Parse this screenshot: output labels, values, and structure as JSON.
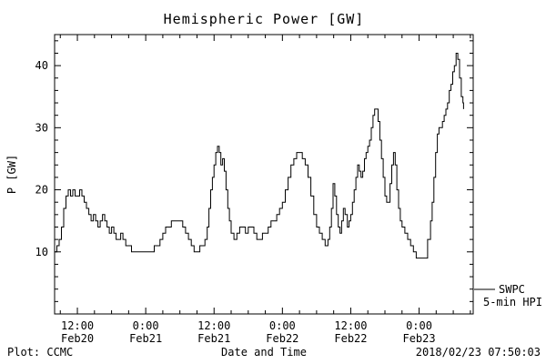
{
  "title": "Hemispheric Power [GW]",
  "footer": {
    "plot_credit": "Plot: CCMC",
    "xaxis_title": "Date and Time",
    "timestamp": "2018/02/23 07:50:03"
  },
  "legend": {
    "line1": "SWPC",
    "line2": "5-min HPI"
  },
  "colors": {
    "background": "#ffffff",
    "foreground": "#000000",
    "line": "#000000"
  },
  "axes": {
    "ylabel": "P [GW]",
    "y_ticks": [
      10,
      20,
      30,
      40
    ],
    "y_range": [
      0,
      45
    ],
    "y_minor_step": 2,
    "x_range_hours": [
      0,
      73.5
    ],
    "x_minor_step": 3,
    "x_ticks": [
      {
        "hours": 4,
        "time": "12:00",
        "date": "Feb20"
      },
      {
        "hours": 16,
        "time": "0:00",
        "date": "Feb21"
      },
      {
        "hours": 28,
        "time": "12:00",
        "date": "Feb21"
      },
      {
        "hours": 40,
        "time": "0:00",
        "date": "Feb22"
      },
      {
        "hours": 52,
        "time": "12:00",
        "date": "Feb22"
      },
      {
        "hours": 64,
        "time": "0:00",
        "date": "Feb23"
      }
    ]
  },
  "chart_data": {
    "type": "line",
    "title": "Hemispheric Power [GW]",
    "xlabel": "Date and Time",
    "ylabel": "P [GW]",
    "x_unit": "hours since 2018-02-20 08:00",
    "xlim": [
      0,
      73.5
    ],
    "ylim": [
      0,
      45
    ],
    "grid": false,
    "legend_position": "right-outside-bottom",
    "line_style": "step",
    "series": [
      {
        "name": "SWPC 5-min HPI",
        "points": [
          [
            0,
            10
          ],
          [
            0.4,
            11
          ],
          [
            0.8,
            12
          ],
          [
            1.2,
            14
          ],
          [
            1.6,
            17
          ],
          [
            2,
            19
          ],
          [
            2.4,
            20
          ],
          [
            2.8,
            19
          ],
          [
            3.2,
            20
          ],
          [
            3.6,
            19
          ],
          [
            4,
            19
          ],
          [
            4.4,
            20
          ],
          [
            4.8,
            19
          ],
          [
            5.2,
            18
          ],
          [
            5.6,
            17
          ],
          [
            6,
            16
          ],
          [
            6.4,
            15
          ],
          [
            6.8,
            16
          ],
          [
            7.2,
            15
          ],
          [
            7.6,
            14
          ],
          [
            8,
            15
          ],
          [
            8.4,
            16
          ],
          [
            8.8,
            15
          ],
          [
            9.2,
            14
          ],
          [
            9.6,
            13
          ],
          [
            10,
            14
          ],
          [
            10.4,
            13
          ],
          [
            10.8,
            12
          ],
          [
            11.2,
            12
          ],
          [
            11.6,
            13
          ],
          [
            12,
            12
          ],
          [
            12.5,
            11
          ],
          [
            13,
            11
          ],
          [
            13.5,
            10
          ],
          [
            14,
            10
          ],
          [
            15,
            10
          ],
          [
            16,
            10
          ],
          [
            17,
            10
          ],
          [
            17.5,
            11
          ],
          [
            18,
            11
          ],
          [
            18.5,
            12
          ],
          [
            19,
            13
          ],
          [
            19.5,
            14
          ],
          [
            20,
            14
          ],
          [
            20.5,
            15
          ],
          [
            21,
            15
          ],
          [
            21.5,
            15
          ],
          [
            22,
            15
          ],
          [
            22.5,
            14
          ],
          [
            23,
            13
          ],
          [
            23.5,
            12
          ],
          [
            24,
            11
          ],
          [
            24.5,
            10
          ],
          [
            25,
            10
          ],
          [
            25.5,
            11
          ],
          [
            26,
            11
          ],
          [
            26.4,
            12
          ],
          [
            26.8,
            14
          ],
          [
            27.1,
            17
          ],
          [
            27.4,
            20
          ],
          [
            27.7,
            22
          ],
          [
            28,
            24
          ],
          [
            28.3,
            26
          ],
          [
            28.6,
            27
          ],
          [
            28.9,
            26
          ],
          [
            29.2,
            24
          ],
          [
            29.5,
            25
          ],
          [
            29.8,
            23
          ],
          [
            30.1,
            20
          ],
          [
            30.4,
            17
          ],
          [
            30.7,
            15
          ],
          [
            31,
            13
          ],
          [
            31.5,
            12
          ],
          [
            32,
            13
          ],
          [
            32.5,
            14
          ],
          [
            33,
            14
          ],
          [
            33.5,
            13
          ],
          [
            34,
            14
          ],
          [
            34.5,
            14
          ],
          [
            35,
            13
          ],
          [
            35.5,
            12
          ],
          [
            36,
            12
          ],
          [
            36.5,
            13
          ],
          [
            37,
            13
          ],
          [
            37.5,
            14
          ],
          [
            38,
            15
          ],
          [
            38.5,
            15
          ],
          [
            39,
            16
          ],
          [
            39.5,
            17
          ],
          [
            40,
            18
          ],
          [
            40.5,
            20
          ],
          [
            41,
            22
          ],
          [
            41.5,
            24
          ],
          [
            42,
            25
          ],
          [
            42.5,
            26
          ],
          [
            43,
            26
          ],
          [
            43.5,
            25
          ],
          [
            44,
            24
          ],
          [
            44.5,
            22
          ],
          [
            45,
            19
          ],
          [
            45.5,
            16
          ],
          [
            46,
            14
          ],
          [
            46.5,
            13
          ],
          [
            47,
            12
          ],
          [
            47.5,
            11
          ],
          [
            48,
            12
          ],
          [
            48.3,
            14
          ],
          [
            48.6,
            17
          ],
          [
            48.9,
            21
          ],
          [
            49.2,
            19
          ],
          [
            49.5,
            16
          ],
          [
            49.8,
            14
          ],
          [
            50.1,
            13
          ],
          [
            50.4,
            15
          ],
          [
            50.7,
            17
          ],
          [
            51,
            16
          ],
          [
            51.4,
            14
          ],
          [
            51.7,
            15
          ],
          [
            52,
            16
          ],
          [
            52.3,
            18
          ],
          [
            52.6,
            20
          ],
          [
            52.9,
            22
          ],
          [
            53.2,
            24
          ],
          [
            53.5,
            23
          ],
          [
            53.8,
            22
          ],
          [
            54.1,
            23
          ],
          [
            54.4,
            25
          ],
          [
            54.7,
            26
          ],
          [
            55,
            27
          ],
          [
            55.3,
            28
          ],
          [
            55.6,
            30
          ],
          [
            55.9,
            32
          ],
          [
            56.2,
            33
          ],
          [
            56.5,
            33
          ],
          [
            56.8,
            31
          ],
          [
            57.1,
            28
          ],
          [
            57.4,
            25
          ],
          [
            57.7,
            22
          ],
          [
            58,
            19
          ],
          [
            58.3,
            18
          ],
          [
            58.6,
            18
          ],
          [
            58.9,
            21
          ],
          [
            59.2,
            24
          ],
          [
            59.5,
            26
          ],
          [
            59.8,
            24
          ],
          [
            60.1,
            20
          ],
          [
            60.4,
            17
          ],
          [
            60.7,
            15
          ],
          [
            61,
            14
          ],
          [
            61.5,
            13
          ],
          [
            62,
            12
          ],
          [
            62.5,
            11
          ],
          [
            63,
            10
          ],
          [
            63.5,
            9
          ],
          [
            64,
            9
          ],
          [
            64.5,
            9
          ],
          [
            65,
            9
          ],
          [
            65.5,
            12
          ],
          [
            66,
            15
          ],
          [
            66.3,
            18
          ],
          [
            66.6,
            22
          ],
          [
            66.9,
            26
          ],
          [
            67.2,
            29
          ],
          [
            67.5,
            30
          ],
          [
            67.8,
            30
          ],
          [
            68.1,
            31
          ],
          [
            68.4,
            32
          ],
          [
            68.7,
            33
          ],
          [
            69,
            34
          ],
          [
            69.3,
            36
          ],
          [
            69.6,
            37
          ],
          [
            69.9,
            39
          ],
          [
            70.2,
            40
          ],
          [
            70.5,
            42
          ],
          [
            70.8,
            41
          ],
          [
            71.1,
            38
          ],
          [
            71.4,
            35
          ],
          [
            71.7,
            34
          ],
          [
            71.8,
            33
          ]
        ]
      }
    ]
  }
}
